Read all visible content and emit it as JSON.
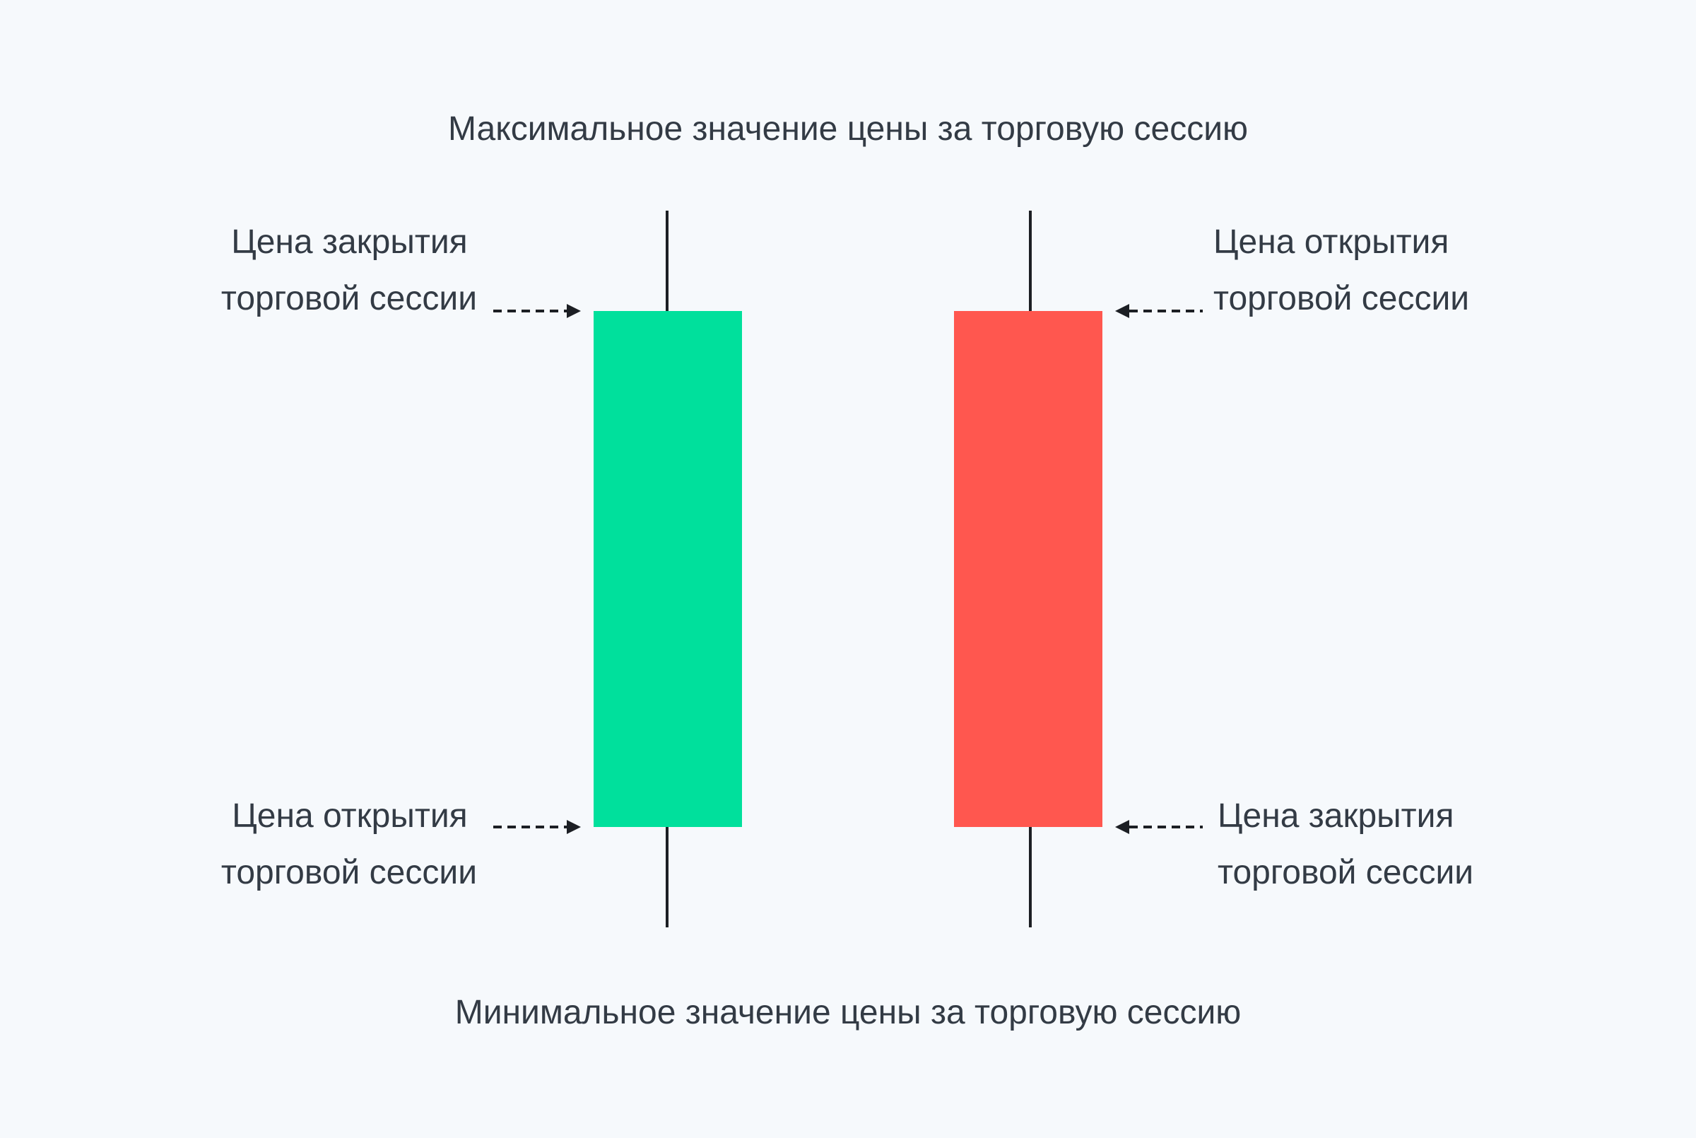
{
  "top_caption": "Максимальное значение цены за торговую сессию",
  "bottom_caption": "Минимальное значение цены за торговую сессию",
  "bullish_candle": {
    "color": "#00e09c",
    "top_label": [
      "Цена закрытия",
      "торговой сессии"
    ],
    "bottom_label": [
      "Цена открытия",
      "торговой сессии"
    ]
  },
  "bearish_candle": {
    "color": "#ff574f",
    "top_label": [
      "Цена открытия",
      "торговой сессии"
    ],
    "bottom_label": [
      "Цена закрытия",
      "торговой сессии"
    ]
  }
}
